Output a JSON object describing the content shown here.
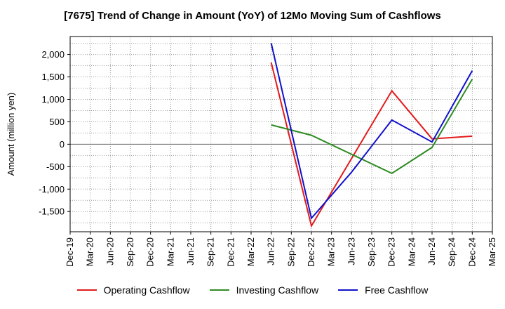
{
  "chart_data": {
    "type": "line",
    "title": "[7675]  Trend of Change in Amount (YoY) of 12Mo Moving Sum of Cashflows",
    "xlabel": "",
    "ylabel": "Amount (million yen)",
    "categories": [
      "Dec-19",
      "Mar-20",
      "Jun-20",
      "Sep-20",
      "Dec-20",
      "Mar-21",
      "Jun-21",
      "Sep-21",
      "Dec-21",
      "Mar-22",
      "Jun-22",
      "Sep-22",
      "Dec-22",
      "Mar-23",
      "Jun-23",
      "Sep-23",
      "Dec-23",
      "Mar-24",
      "Jun-24",
      "Sep-24",
      "Dec-24",
      "Mar-25"
    ],
    "ylim": [
      -1950,
      2400
    ],
    "yticks": [
      2000,
      1500,
      1000,
      500,
      0,
      -500,
      -1000,
      -1500
    ],
    "ytick_labels": [
      "2,000",
      "1,500",
      "1,000",
      "500",
      "0",
      "-500",
      "-1,000",
      "-1,500"
    ],
    "grid": true,
    "legend_position": "bottom",
    "series": [
      {
        "name": "Operating Cashflow",
        "color": "#e31a1c",
        "points": [
          [
            "Jun-22",
            1820
          ],
          [
            "Dec-22",
            -1820
          ],
          [
            "Dec-23",
            1190
          ],
          [
            "Jun-24",
            120
          ],
          [
            "Dec-24",
            180
          ]
        ]
      },
      {
        "name": "Investing Cashflow",
        "color": "#2e8b22",
        "points": [
          [
            "Jun-22",
            430
          ],
          [
            "Dec-22",
            200
          ],
          [
            "Dec-23",
            -650
          ],
          [
            "Jun-24",
            -70
          ],
          [
            "Dec-24",
            1450
          ]
        ]
      },
      {
        "name": "Free Cashflow",
        "color": "#1010cc",
        "points": [
          [
            "Jun-22",
            2250
          ],
          [
            "Dec-22",
            -1650
          ],
          [
            "Jun-23",
            -620
          ],
          [
            "Dec-23",
            540
          ],
          [
            "Jun-24",
            50
          ],
          [
            "Dec-24",
            1640
          ]
        ]
      }
    ]
  }
}
